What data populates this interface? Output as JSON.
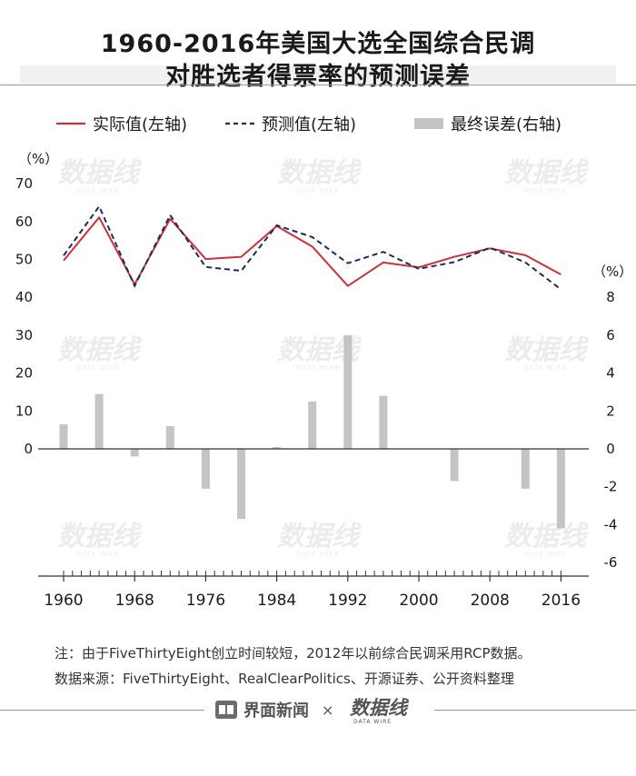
{
  "title_lines": [
    "1960-2016年美国大选全国综合民调",
    "对胜选者得票率的预测误差"
  ],
  "legend": {
    "actual": "实际值(左轴)",
    "forecast": "预测值(左轴)",
    "error": "最终误差(右轴)"
  },
  "colors": {
    "actual": "#c8323b",
    "forecast": "#1f2a5a",
    "error": "#c4c4c4",
    "axis": "#333333"
  },
  "notes": [
    "注：由于FiveThirtyEight创立时间较短，2012年以前综合民调采用RCP数据。",
    "数据来源：FiveThirtyEight、RealClearPolitics、开源证券、公开资料整理"
  ],
  "footer": {
    "logo_icon": "newspaper-icon",
    "brand": "界面新闻",
    "cross": "×",
    "partner_logo": "数据线 DATA WIRE"
  },
  "watermark_text": "数据线",
  "watermark_sub": "DATA WIRE",
  "chart_data": {
    "type": "line+bar",
    "years": [
      1960,
      1964,
      1968,
      1972,
      1976,
      1980,
      1984,
      1988,
      1992,
      1996,
      2000,
      2004,
      2008,
      2012,
      2016
    ],
    "series": [
      {
        "name": "实际值(左轴)",
        "type": "line",
        "axis": "left",
        "values": [
          49.7,
          61.1,
          43.4,
          60.7,
          50.1,
          50.7,
          58.8,
          53.4,
          43.0,
          49.2,
          47.9,
          50.7,
          52.9,
          51.1,
          46.0
        ]
      },
      {
        "name": "预测值(左轴)",
        "type": "line",
        "axis": "left",
        "dash": true,
        "values": [
          51.0,
          64.0,
          43.0,
          61.7,
          48.0,
          47.0,
          59.0,
          55.9,
          49.0,
          52.0,
          47.5,
          49.3,
          53.1,
          49.2,
          42.1
        ]
      },
      {
        "name": "最终误差(右轴)",
        "type": "bar",
        "axis": "right",
        "values": [
          1.3,
          2.9,
          -0.4,
          1.2,
          -2.1,
          -3.7,
          0.1,
          2.5,
          6.0,
          2.8,
          null,
          -1.7,
          null,
          -2.1,
          -4.2
        ]
      }
    ],
    "left_axis": {
      "unit_label": "（%）",
      "range": [
        -30,
        70
      ],
      "ticks": [
        0,
        10,
        20,
        30,
        40,
        50,
        60,
        70
      ]
    },
    "right_axis": {
      "unit_label": "（%）",
      "range": [
        -6,
        8
      ],
      "ticks": [
        -6,
        -4,
        -2,
        0,
        2,
        4,
        6,
        8
      ]
    },
    "x_tick_labels": [
      "1960",
      "1968",
      "1976",
      "1984",
      "1992",
      "2000",
      "2008",
      "2016"
    ],
    "legend_position": "top"
  }
}
